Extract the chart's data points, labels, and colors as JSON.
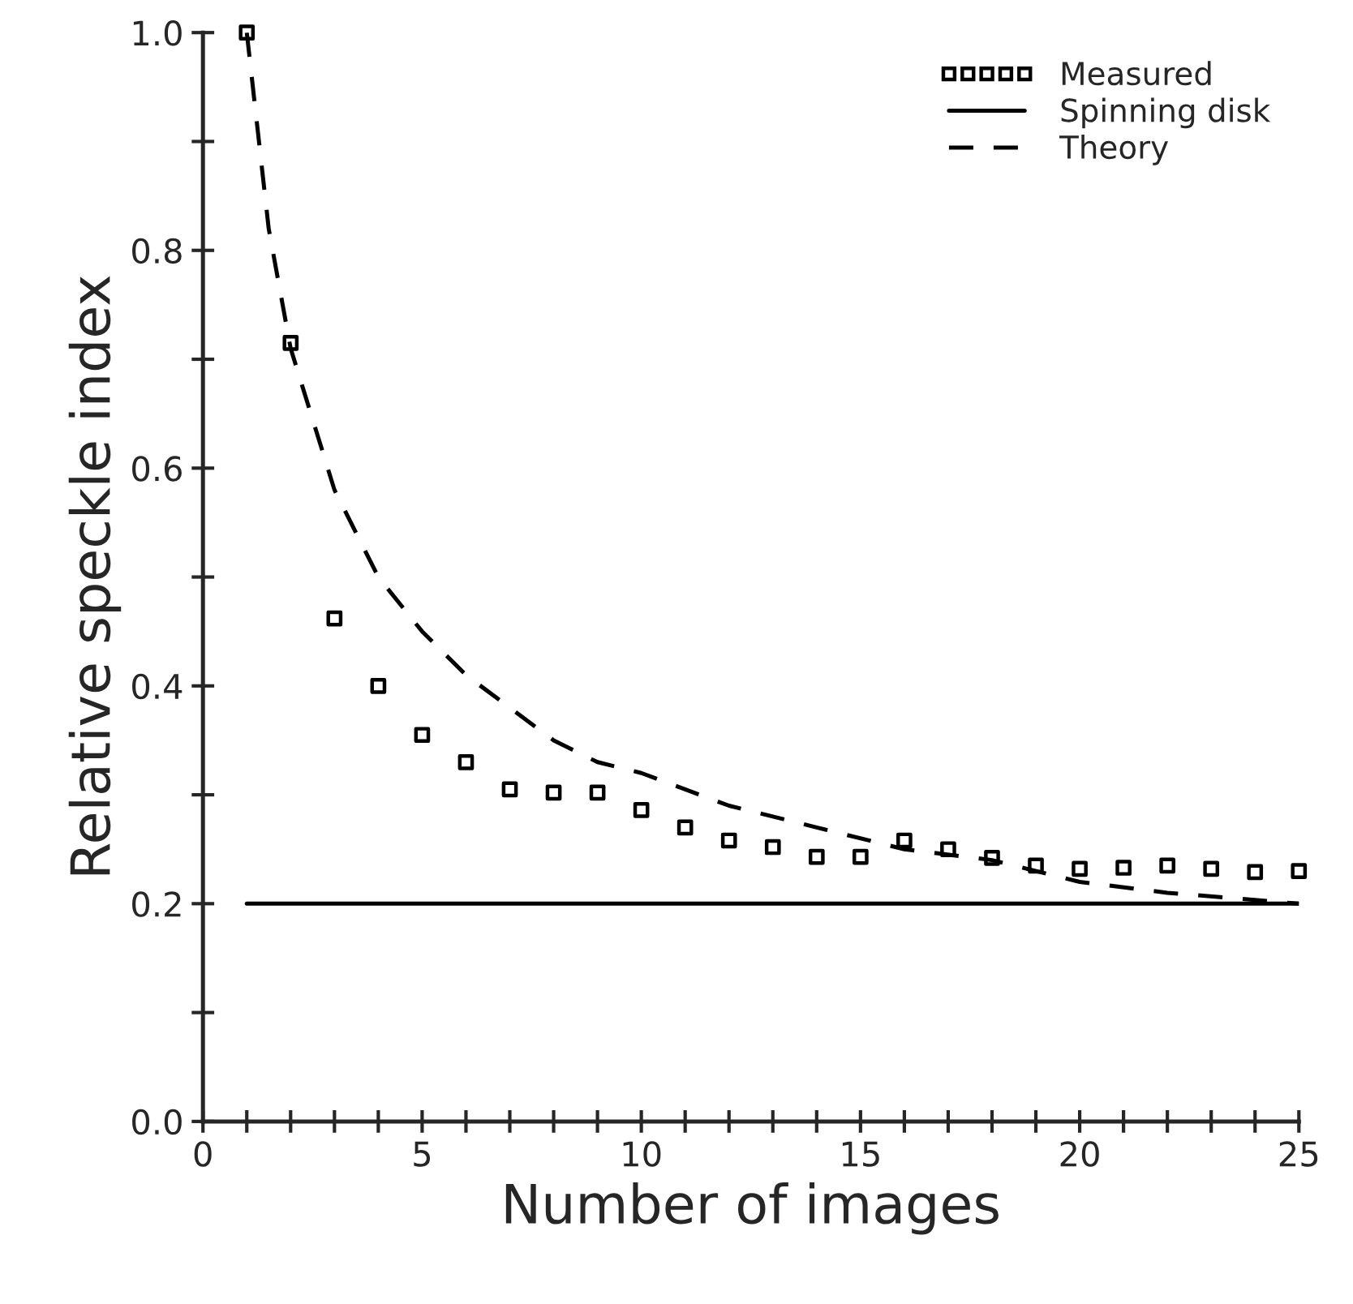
{
  "chart_data": {
    "type": "line",
    "xlabel": "Number of images",
    "ylabel": "Relative speckle index",
    "xlim": [
      0,
      25
    ],
    "ylim": [
      0,
      1.0
    ],
    "xticks": [
      0,
      {
        "value": 1,
        "label": null
      },
      {
        "value": 2,
        "label": null
      },
      {
        "value": 3,
        "label": null
      },
      {
        "value": 4,
        "label": null
      },
      5,
      {
        "value": 6,
        "label": null
      },
      {
        "value": 7,
        "label": null
      },
      {
        "value": 8,
        "label": null
      },
      {
        "value": 9,
        "label": null
      },
      10,
      {
        "value": 11,
        "label": null
      },
      {
        "value": 12,
        "label": null
      },
      {
        "value": 13,
        "label": null
      },
      {
        "value": 14,
        "label": null
      },
      15,
      {
        "value": 16,
        "label": null
      },
      {
        "value": 17,
        "label": null
      },
      {
        "value": 18,
        "label": null
      },
      {
        "value": 19,
        "label": null
      },
      20,
      {
        "value": 21,
        "label": null
      },
      {
        "value": 22,
        "label": null
      },
      {
        "value": 23,
        "label": null
      },
      {
        "value": 24,
        "label": null
      },
      25
    ],
    "yticks": [
      {
        "value": 0,
        "label": "0.0"
      },
      {
        "value": 0.1,
        "label": null
      },
      0.2,
      {
        "value": 0.3,
        "label": null
      },
      0.4,
      {
        "value": 0.5,
        "label": null
      },
      0.6,
      {
        "value": 0.7,
        "label": null
      },
      0.8,
      {
        "value": 0.9,
        "label": null
      },
      {
        "value": 1.0,
        "label": "1.0"
      }
    ],
    "legend": "top right",
    "grid": false,
    "series": [
      {
        "name": "Measured",
        "type": "scatter",
        "marker": "square",
        "color": "#000000",
        "x": [
          1,
          2,
          3,
          4,
          5,
          6,
          7,
          8,
          9,
          10,
          11,
          12,
          13,
          14,
          15,
          16,
          17,
          18,
          19,
          20,
          21,
          22,
          23,
          24,
          25
        ],
        "values": [
          1.0,
          0.715,
          0.462,
          0.4,
          0.355,
          0.33,
          0.305,
          0.302,
          0.302,
          0.286,
          0.27,
          0.258,
          0.252,
          0.243,
          0.243,
          0.258,
          0.25,
          0.242,
          0.235,
          0.232,
          0.233,
          0.235,
          0.232,
          0.229,
          0.23
        ]
      },
      {
        "name": "Spinning disk",
        "line_style": "solid",
        "color": "#000000",
        "x": [
          1,
          25
        ],
        "values": [
          0.2,
          0.2
        ]
      },
      {
        "name": "Theory",
        "line_style": "dashed",
        "color": "#000000",
        "x": [
          1,
          1.5,
          2,
          3,
          4,
          5,
          6,
          7,
          8,
          9,
          10,
          12,
          14,
          16,
          18,
          20,
          22,
          25
        ],
        "values": [
          1.0,
          0.82,
          0.71,
          0.58,
          0.5,
          0.45,
          0.41,
          0.38,
          0.35,
          0.33,
          0.32,
          0.29,
          0.27,
          0.25,
          0.24,
          0.22,
          0.21,
          0.2
        ]
      }
    ]
  }
}
